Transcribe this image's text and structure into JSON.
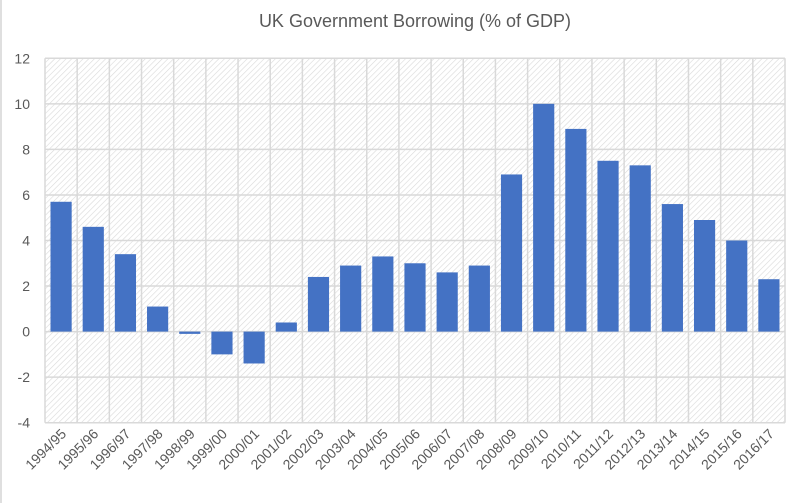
{
  "chart_data": {
    "type": "bar",
    "title": "UK Government Borrowing (% of GDP)",
    "xlabel": "",
    "ylabel": "",
    "ylim": [
      -4,
      12
    ],
    "yticks": [
      "12",
      "10",
      "8",
      "6",
      "4",
      "2",
      "0",
      "-2",
      "-4"
    ],
    "grid": true,
    "bar_color": "#4472C4",
    "categories": [
      "1994/95",
      "1995/96",
      "1996/97",
      "1997/98",
      "1998/99",
      "1999/00",
      "2000/01",
      "2001/02",
      "2002/03",
      "2003/04",
      "2004/05",
      "2005/06",
      "2006/07",
      "2007/08",
      "2008/09",
      "2009/10",
      "2010/11",
      "2011/12",
      "2012/13",
      "2013/14",
      "2014/15",
      "2015/16",
      "2016/17"
    ],
    "values": [
      5.7,
      4.6,
      3.4,
      1.1,
      -0.1,
      -1.0,
      -1.4,
      0.4,
      2.4,
      2.9,
      3.3,
      3.0,
      2.6,
      2.9,
      6.9,
      10.0,
      8.9,
      7.5,
      7.3,
      5.6,
      4.9,
      4.0,
      2.3
    ]
  }
}
